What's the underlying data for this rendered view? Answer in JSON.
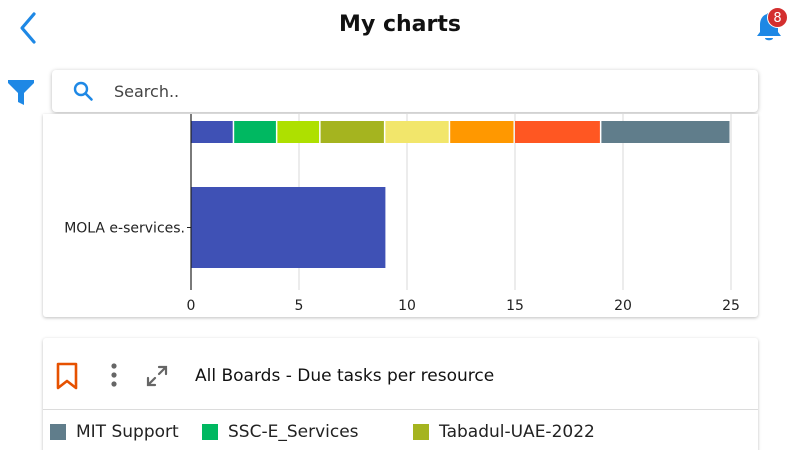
{
  "header": {
    "title": "My charts",
    "notification_count": "8"
  },
  "search": {
    "placeholder": "Search.."
  },
  "colors": {
    "accent": "#1e88e5",
    "bookmark": "#e65100",
    "badge": "#d32f2f"
  },
  "icons": {
    "back": "chevron-left-icon",
    "notifications": "bell-icon",
    "filter": "filter-icon",
    "search": "search-icon",
    "bookmark": "bookmark-icon",
    "more": "more-vertical-icon",
    "expand": "expand-icon"
  },
  "chart_data": {
    "type": "bar",
    "orientation": "horizontal",
    "stacked": true,
    "categories": [
      "",
      "MOLA e-services."
    ],
    "xlim": [
      0,
      25
    ],
    "x_ticks": [
      "0",
      "5",
      "10",
      "15",
      "20",
      "25"
    ],
    "grid": true,
    "series": [
      {
        "color": "#3f51b5",
        "values": [
          2,
          9
        ]
      },
      {
        "color": "#00b861",
        "values": [
          2,
          0
        ]
      },
      {
        "color": "#aee000",
        "values": [
          2,
          0
        ]
      },
      {
        "color": "#a5b41f",
        "values": [
          3,
          0
        ]
      },
      {
        "color": "#f2e66b",
        "values": [
          3,
          0
        ]
      },
      {
        "color": "#ff9800",
        "values": [
          3,
          0
        ]
      },
      {
        "color": "#ff5722",
        "values": [
          4,
          0
        ]
      },
      {
        "color": "#607d8b",
        "values": [
          6,
          0
        ]
      }
    ]
  },
  "card2": {
    "title": "All Boards - Due tasks per resource",
    "legend": [
      {
        "name": "MIT Support",
        "color": "#607d8b"
      },
      {
        "name": "SSC-E_Services",
        "color": "#00b861"
      },
      {
        "name": "Tabadul-UAE-2022",
        "color": "#a5b41f"
      }
    ]
  }
}
